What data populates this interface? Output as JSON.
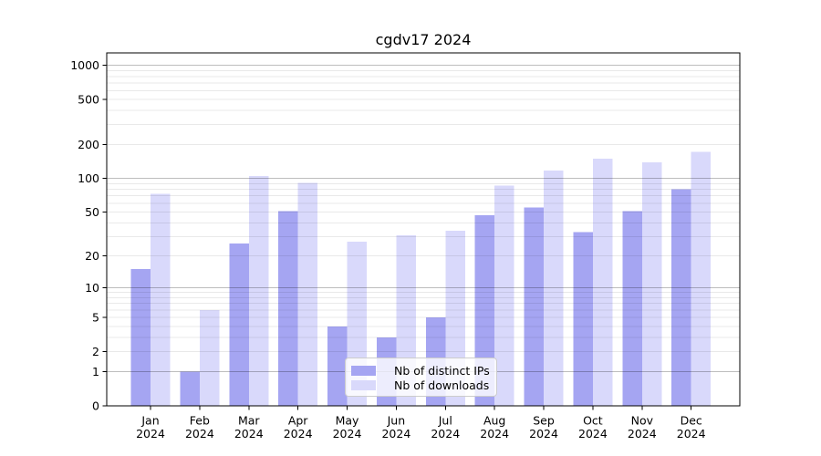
{
  "figure": {
    "background": "#ffffff"
  },
  "chart_data": {
    "type": "bar",
    "title": "cgdv17 2024",
    "xlabel": "",
    "ylabel": "",
    "yscale": "log1p",
    "ylim": [
      0,
      1290
    ],
    "y_ticks": [
      1000,
      500,
      200,
      100,
      50,
      20,
      10,
      5,
      2,
      1,
      0
    ],
    "grid": true,
    "categories": [
      "Jan 2024",
      "Feb 2024",
      "Mar 2024",
      "Apr 2024",
      "May 2024",
      "Jun 2024",
      "Jul 2024",
      "Aug 2024",
      "Sep 2024",
      "Oct 2024",
      "Nov 2024",
      "Dec 2024"
    ],
    "series": [
      {
        "name": "Nb of distinct IPs",
        "color": "#a5a5f2",
        "values": [
          15,
          1,
          26,
          51,
          4,
          3,
          5,
          47,
          55,
          33,
          51,
          80
        ]
      },
      {
        "name": "Nb of downloads",
        "color": "#d9d9fb",
        "values": [
          73,
          6,
          105,
          91,
          27,
          31,
          34,
          86,
          118,
          150,
          139,
          173
        ]
      }
    ],
    "legend": {
      "position": "inside-bottom-center"
    }
  },
  "axis_style": {
    "spine_color": "#000000",
    "major_grid_color": "#bdbdbd",
    "minor_grid_color": "#e9e9e9",
    "tick_label_color": "#000000"
  }
}
